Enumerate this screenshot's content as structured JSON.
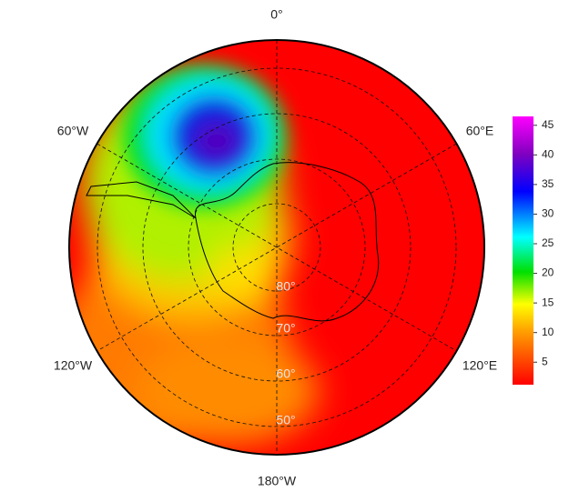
{
  "map": {
    "longitude_labels": [
      "0°",
      "60°W",
      "60°E",
      "120°W",
      "120°E",
      "180°W"
    ],
    "latitude_labels": [
      "80°",
      "70°",
      "60°",
      "50°"
    ],
    "colorbar": {
      "range": [
        1.2,
        46.5
      ],
      "ticks": [
        5,
        10,
        15,
        20,
        25,
        30,
        35,
        40,
        45
      ]
    }
  }
}
